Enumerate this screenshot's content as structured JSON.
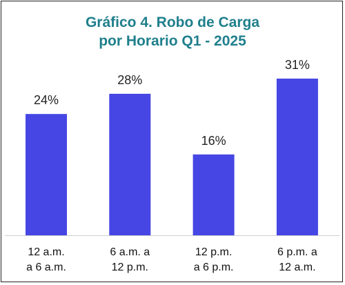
{
  "chart_data": {
    "type": "bar",
    "title_lines": [
      "Gráfico 4. Robo de Carga",
      "por Horario Q1 - 2025"
    ],
    "categories": [
      [
        "12 a.m.",
        "a 6 a.m."
      ],
      [
        "6 a.m. a",
        "12 p.m."
      ],
      [
        "12 p.m.",
        "a 6 p.m."
      ],
      [
        "6 p.m. a",
        "12 a.m."
      ]
    ],
    "values": [
      24,
      28,
      16,
      31
    ],
    "data_labels": [
      "24%",
      "28%",
      "16%",
      "31%"
    ],
    "unit": "%",
    "ylim": [
      0,
      40
    ],
    "grid": false,
    "legend": "none",
    "bar_color": "#4646e4",
    "title_color": "#1f7f8c"
  }
}
